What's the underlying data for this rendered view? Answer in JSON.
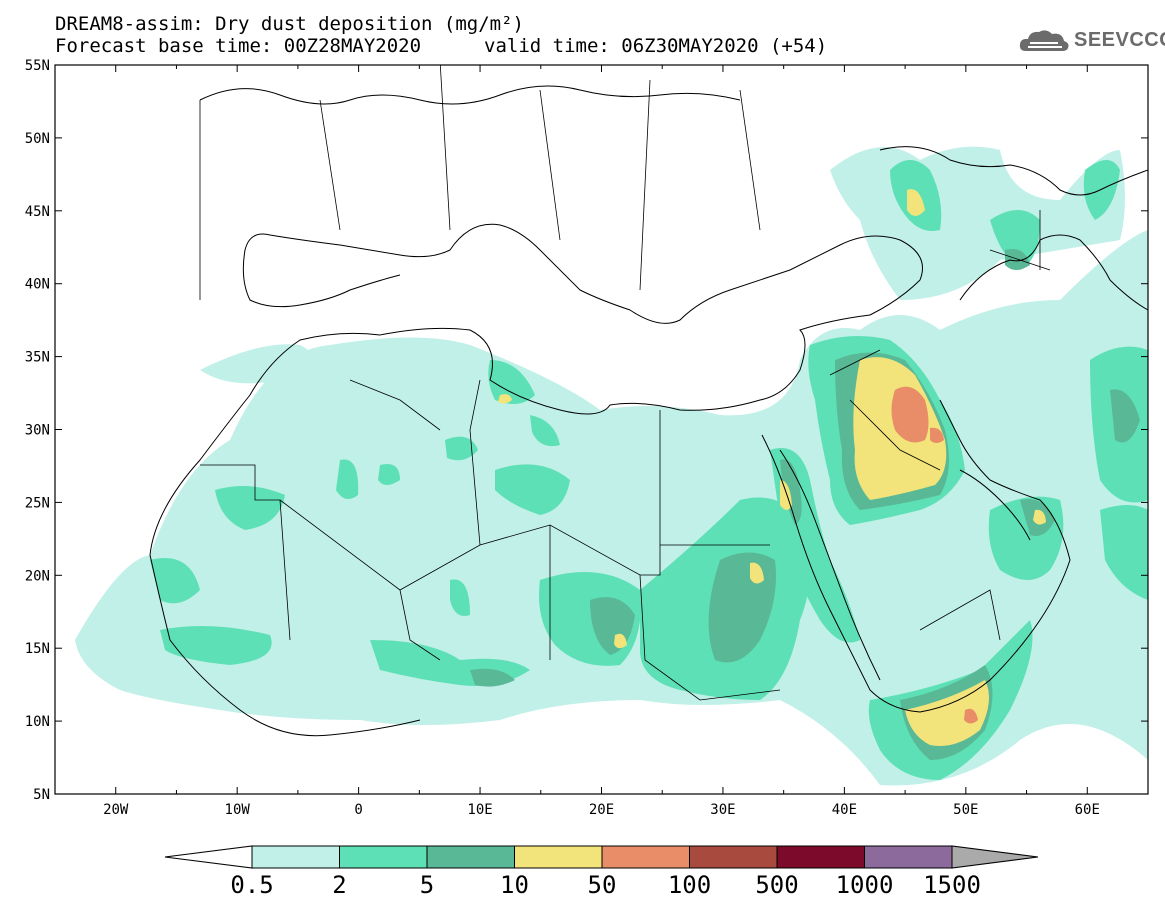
{
  "header": {
    "title": "DREAM8-assim: Dry dust deposition (mg/m²)",
    "base_time": "Forecast base time: 00Z28MAY2020",
    "valid_time": "valid time: 06Z30MAY2020 (+54)"
  },
  "logo": {
    "text": "SEEVCCC",
    "icon": "cloud-logo-icon"
  },
  "map": {
    "lon_range": [
      -25,
      65
    ],
    "lat_range": [
      5,
      55
    ],
    "lat_ticks": [
      "55N",
      "50N",
      "45N",
      "40N",
      "35N",
      "30N",
      "25N",
      "20N",
      "15N",
      "10N",
      "5N"
    ],
    "lon_ticks": [
      "20W",
      "10W",
      "0",
      "10E",
      "20E",
      "30E",
      "40E",
      "50E",
      "60E"
    ]
  },
  "legend": {
    "labels": [
      "0.5",
      "2",
      "5",
      "10",
      "50",
      "100",
      "500",
      "1000",
      "1500"
    ],
    "colors": [
      "#c0f0e8",
      "#5ee0b6",
      "#59b996",
      "#f2e47a",
      "#e98c68",
      "#a84b3e",
      "#7c0a2a",
      "#8c6a9c"
    ],
    "under_color": "#ffffff",
    "over_color": "#aaaaaa"
  }
}
